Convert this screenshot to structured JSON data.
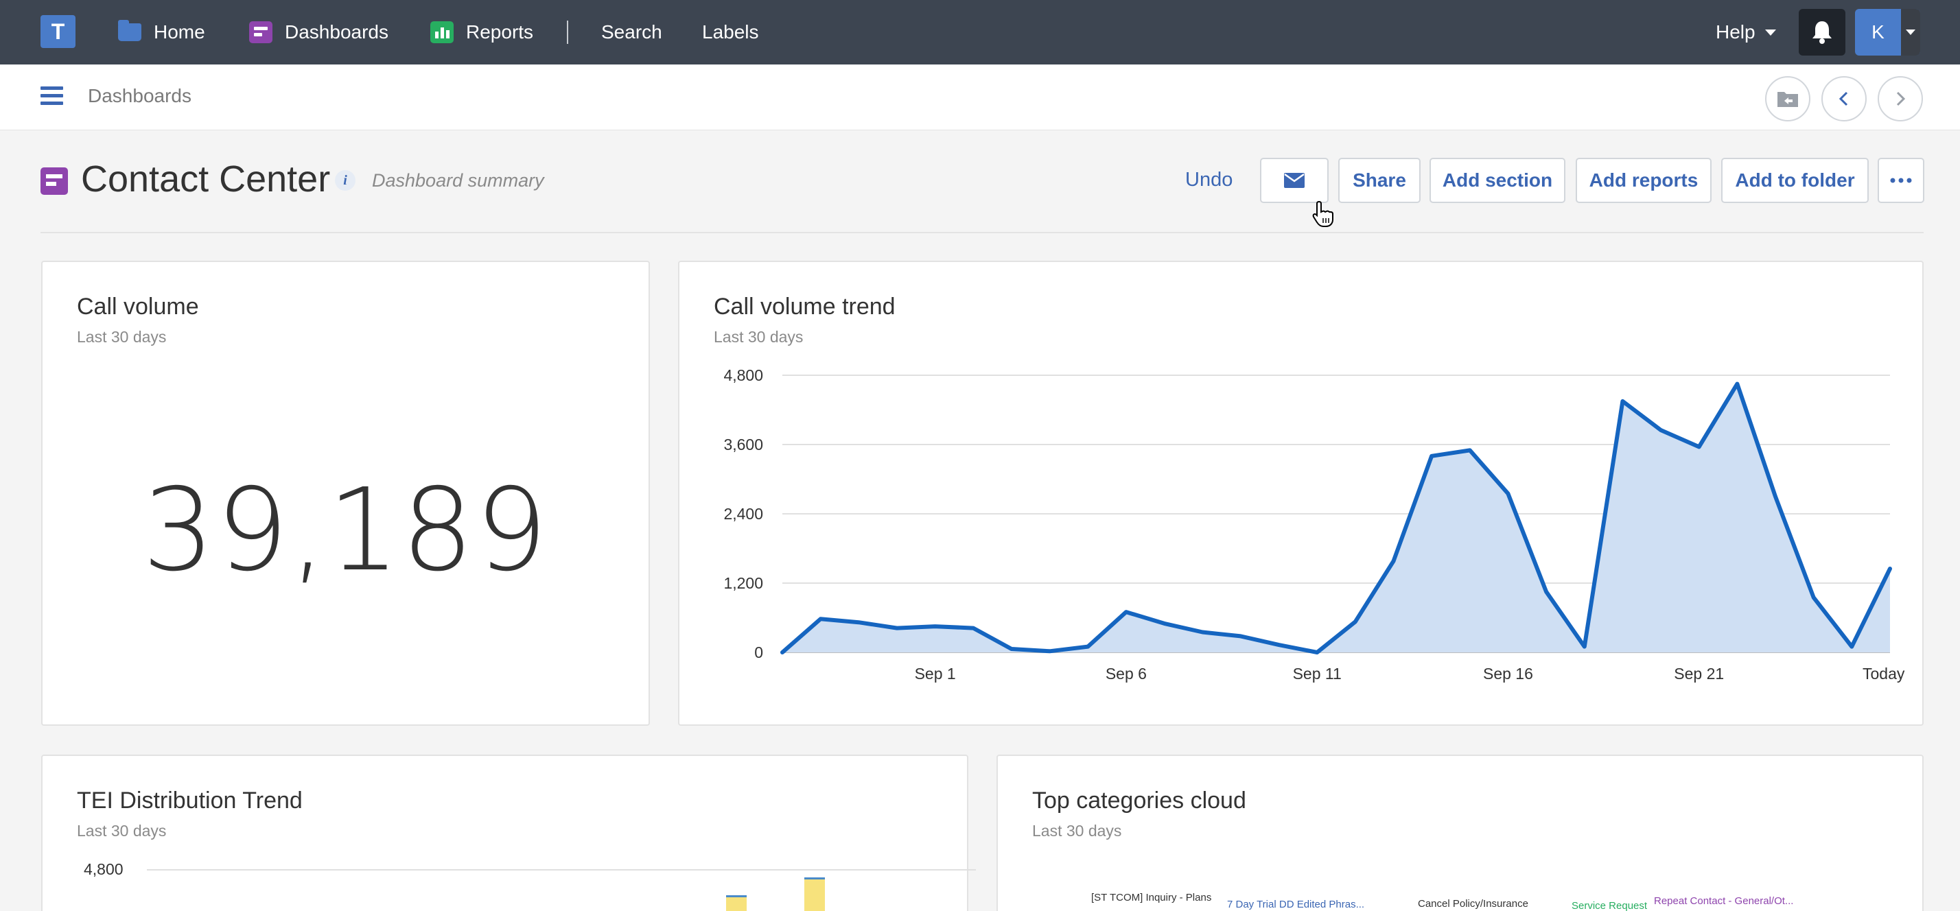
{
  "nav": {
    "logo": "T",
    "items": [
      {
        "label": "Home",
        "icon": "folder-icon"
      },
      {
        "label": "Dashboards",
        "icon": "dashboard-icon"
      },
      {
        "label": "Reports",
        "icon": "bar-chart-icon"
      },
      {
        "label": "Search"
      },
      {
        "label": "Labels"
      }
    ],
    "help_label": "Help",
    "user_initial": "K"
  },
  "breadcrumb": "Dashboards",
  "page": {
    "title": "Contact Center",
    "info_glyph": "i",
    "summary": "Dashboard summary",
    "undo": "Undo",
    "buttons": {
      "share": "Share",
      "add_section": "Add section",
      "add_reports": "Add reports",
      "add_to_folder": "Add to folder"
    }
  },
  "cards": {
    "call_volume": {
      "title": "Call volume",
      "subtitle": "Last 30 days",
      "value": "39,189"
    },
    "trend": {
      "title": "Call volume trend",
      "subtitle": "Last 30 days"
    },
    "tei": {
      "title": "TEI Distribution Trend",
      "subtitle": "Last 30 days",
      "y_top_label": "4,800"
    },
    "cloud": {
      "title": "Top categories cloud",
      "subtitle": "Last 30 days"
    }
  },
  "cloud_words": [
    {
      "text": "[ST TCOM] Inquiry - Plans",
      "color": "#333333"
    },
    {
      "text": "7 Day Trial DD Edited Phras...",
      "color": "#3b66b3"
    },
    {
      "text": "Cancel Policy/Insurance",
      "color": "#333333"
    },
    {
      "text": "Service Request",
      "color": "#27ae60"
    },
    {
      "text": "Repeat Contact - General/Ot...",
      "color": "#8e44ad"
    }
  ],
  "colors": {
    "accent": "#3b66b3",
    "line": "#1565c0",
    "area": "#cfdff3",
    "tei_bar": "#f7e27c"
  },
  "chart_data": [
    {
      "type": "area",
      "title": "Call volume trend",
      "xlabel": "",
      "ylabel": "",
      "ylim": [
        0,
        4800
      ],
      "yticks": [
        0,
        1200,
        2400,
        3600,
        4800
      ],
      "ytick_labels": [
        "0",
        "1,200",
        "2,400",
        "3,600",
        "4,800"
      ],
      "xtick_labels": [
        "Sep 1",
        "Sep 6",
        "Sep 11",
        "Sep 16",
        "Sep 21",
        "Today"
      ],
      "xtick_index": [
        4,
        9,
        14,
        19,
        24,
        29
      ],
      "grid": true,
      "x": [
        "Aug 28",
        "Aug 29",
        "Aug 30",
        "Aug 31",
        "Sep 1",
        "Sep 2",
        "Sep 3",
        "Sep 4",
        "Sep 5",
        "Sep 6",
        "Sep 7",
        "Sep 8",
        "Sep 9",
        "Sep 10",
        "Sep 11",
        "Sep 12",
        "Sep 13",
        "Sep 14",
        "Sep 15",
        "Sep 16",
        "Sep 17",
        "Sep 18",
        "Sep 19",
        "Sep 20",
        "Sep 21",
        "Sep 22",
        "Sep 23",
        "Sep 24",
        "Sep 25",
        "Today"
      ],
      "values": [
        0,
        580,
        520,
        420,
        450,
        420,
        60,
        20,
        100,
        700,
        500,
        350,
        280,
        130,
        0,
        530,
        1580,
        3400,
        3500,
        2750,
        1050,
        100,
        4350,
        3850,
        3560,
        4650,
        2700,
        950,
        100,
        1450
      ]
    }
  ]
}
